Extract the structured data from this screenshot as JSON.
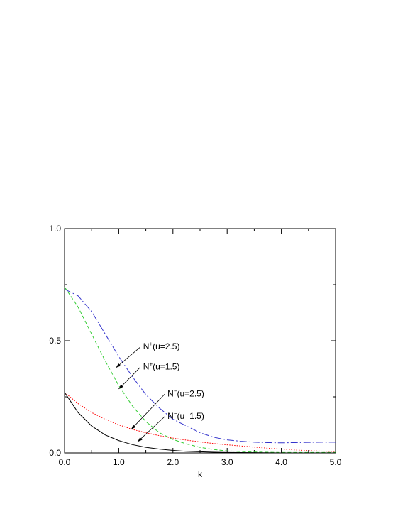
{
  "chart_data": {
    "type": "line",
    "title": "",
    "xlabel": "k",
    "ylabel": "",
    "xlim": [
      0.0,
      5.0
    ],
    "ylim": [
      0.0,
      1.0
    ],
    "xticks": [
      "0.0",
      "1.0",
      "2.0",
      "3.0",
      "4.0",
      "5.0"
    ],
    "yticks": [
      "0.0",
      "0.5",
      "1.0"
    ],
    "grid": false,
    "series": [
      {
        "color": "#3333cc",
        "dash": "long-dash",
        "x": [
          0.0,
          0.25,
          0.5,
          0.75,
          1.0,
          1.25,
          1.5,
          1.75,
          2.0,
          2.25,
          2.5,
          2.75,
          3.0,
          3.25,
          3.5,
          3.75,
          4.0,
          4.25,
          4.5,
          4.75,
          5.0
        ],
        "y": [
          0.73,
          0.7,
          0.63,
          0.53,
          0.43,
          0.34,
          0.26,
          0.2,
          0.15,
          0.12,
          0.09,
          0.07,
          0.058,
          0.052,
          0.048,
          0.046,
          0.045,
          0.046,
          0.047,
          0.048,
          0.048
        ]
      },
      {
        "color": "#33cc33",
        "dash": "dash",
        "x": [
          0.0,
          0.25,
          0.5,
          0.75,
          1.0,
          1.25,
          1.5,
          1.75,
          2.0,
          2.25,
          2.5,
          2.75,
          3.0,
          3.25,
          3.5,
          3.75,
          4.0,
          4.25,
          4.5,
          4.75,
          5.0
        ],
        "y": [
          0.74,
          0.65,
          0.53,
          0.41,
          0.3,
          0.21,
          0.14,
          0.09,
          0.06,
          0.04,
          0.025,
          0.015,
          0.009,
          0.006,
          0.004,
          0.003,
          0.002,
          0.002,
          0.002,
          0.002,
          0.002
        ]
      },
      {
        "color": "#ff0000",
        "dash": "dot",
        "x": [
          0.0,
          0.25,
          0.5,
          0.75,
          1.0,
          1.25,
          1.5,
          1.75,
          2.0,
          2.25,
          2.5,
          2.75,
          3.0,
          3.25,
          3.5,
          3.75,
          4.0,
          4.25,
          4.5,
          4.75,
          5.0
        ],
        "y": [
          0.27,
          0.22,
          0.18,
          0.15,
          0.125,
          0.105,
          0.09,
          0.077,
          0.066,
          0.057,
          0.049,
          0.042,
          0.036,
          0.031,
          0.026,
          0.021,
          0.017,
          0.013,
          0.01,
          0.008,
          0.006
        ]
      },
      {
        "color": "#000000",
        "dash": "solid",
        "x": [
          0.0,
          0.25,
          0.5,
          0.75,
          1.0,
          1.25,
          1.5,
          1.75,
          2.0,
          2.25,
          2.5,
          2.75,
          3.0,
          3.5,
          4.0,
          4.5,
          5.0
        ],
        "y": [
          0.27,
          0.18,
          0.12,
          0.08,
          0.055,
          0.037,
          0.025,
          0.017,
          0.011,
          0.007,
          0.005,
          0.003,
          0.002,
          0.001,
          0.0,
          0.0,
          0.0
        ]
      }
    ],
    "annotations": [
      {
        "base": "N",
        "sup": "+",
        "rest": "(u=2.5)",
        "text_x": 1.45,
        "text_y": 0.475,
        "arrow_x": 0.95,
        "arrow_y": 0.38
      },
      {
        "base": "N",
        "sup": "+",
        "rest": "(u=1.5)",
        "text_x": 1.45,
        "text_y": 0.385,
        "arrow_x": 1.0,
        "arrow_y": 0.285
      },
      {
        "base": "N",
        "sup": "−",
        "rest": "(u=2.5)",
        "text_x": 1.9,
        "text_y": 0.265,
        "arrow_x": 1.23,
        "arrow_y": 0.105
      },
      {
        "base": "N",
        "sup": "−",
        "rest": "(u=1.5)",
        "text_x": 1.9,
        "text_y": 0.165,
        "arrow_x": 1.35,
        "arrow_y": 0.05
      }
    ]
  }
}
